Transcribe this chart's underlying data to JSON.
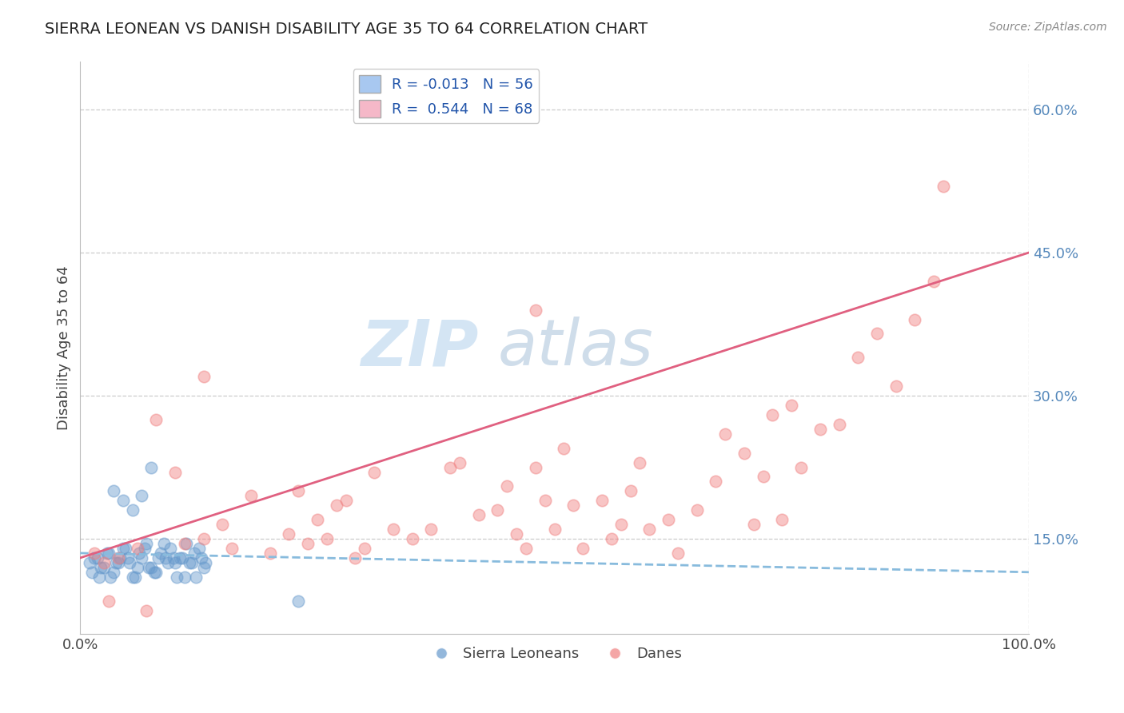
{
  "title": "SIERRA LEONEAN VS DANISH DISABILITY AGE 35 TO 64 CORRELATION CHART",
  "source": "Source: ZipAtlas.com",
  "ylabel": "Disability Age 35 to 64",
  "xlim": [
    0,
    100
  ],
  "ylim": [
    5,
    65
  ],
  "ytick_vals": [
    15,
    30,
    45,
    60
  ],
  "ytick_labels": [
    "15.0%",
    "30.0%",
    "45.0%",
    "60.0%"
  ],
  "xtick_vals": [
    0,
    100
  ],
  "xtick_labels": [
    "0.0%",
    "100.0%"
  ],
  "legend_r1": "R = -0.013   N = 56",
  "legend_r2": "R =  0.544   N = 68",
  "legend_r1_color": "#a8c8f0",
  "legend_r2_color": "#f5b8c8",
  "legend_bottom": [
    "Sierra Leoneans",
    "Danes"
  ],
  "sierra_color": "#6699cc",
  "dane_color": "#f08080",
  "trend_sierra_color": "#88bbdd",
  "trend_dane_color": "#e06080",
  "watermark_zip": "ZIP",
  "watermark_atlas": "atlas",
  "background_color": "#ffffff",
  "grid_color": "#cccccc",
  "sierra_x": [
    1.0,
    1.5,
    2.0,
    2.5,
    3.0,
    3.5,
    4.0,
    4.5,
    5.0,
    5.5,
    6.0,
    6.5,
    7.0,
    7.5,
    8.0,
    8.5,
    9.0,
    9.5,
    10.0,
    10.5,
    11.0,
    11.5,
    12.0,
    12.5,
    13.0,
    1.2,
    1.8,
    2.2,
    2.8,
    3.2,
    3.8,
    4.2,
    4.8,
    5.2,
    5.8,
    6.2,
    6.8,
    7.2,
    7.8,
    8.2,
    8.8,
    9.2,
    9.8,
    10.2,
    10.8,
    11.2,
    11.8,
    12.2,
    12.8,
    13.2,
    3.5,
    4.5,
    5.5,
    6.5,
    7.5,
    23.0
  ],
  "sierra_y": [
    12.5,
    13.0,
    11.0,
    12.0,
    13.5,
    11.5,
    12.5,
    14.0,
    13.0,
    11.0,
    12.0,
    13.0,
    14.5,
    12.0,
    11.5,
    13.5,
    13.0,
    14.0,
    12.5,
    13.0,
    11.0,
    12.5,
    13.5,
    14.0,
    12.0,
    11.5,
    13.0,
    12.0,
    13.5,
    11.0,
    12.5,
    13.0,
    14.0,
    12.5,
    11.0,
    13.5,
    14.0,
    12.0,
    11.5,
    13.0,
    14.5,
    12.5,
    13.0,
    11.0,
    13.0,
    14.5,
    12.5,
    11.0,
    13.0,
    12.5,
    20.0,
    19.0,
    18.0,
    19.5,
    22.5,
    8.5
  ],
  "dane_x": [
    1.5,
    2.5,
    4.0,
    6.0,
    8.0,
    10.0,
    11.0,
    13.0,
    15.0,
    16.0,
    18.0,
    20.0,
    22.0,
    23.0,
    24.0,
    25.0,
    26.0,
    27.0,
    28.0,
    29.0,
    30.0,
    31.0,
    33.0,
    35.0,
    37.0,
    39.0,
    40.0,
    42.0,
    44.0,
    45.0,
    46.0,
    47.0,
    48.0,
    49.0,
    50.0,
    51.0,
    52.0,
    53.0,
    55.0,
    56.0,
    57.0,
    58.0,
    59.0,
    60.0,
    62.0,
    63.0,
    65.0,
    67.0,
    68.0,
    70.0,
    71.0,
    72.0,
    73.0,
    74.0,
    75.0,
    76.0,
    78.0,
    80.0,
    82.0,
    84.0,
    86.0,
    88.0,
    90.0,
    91.0,
    48.0,
    13.0,
    3.0,
    7.0
  ],
  "dane_y": [
    13.5,
    12.5,
    13.0,
    14.0,
    27.5,
    22.0,
    14.5,
    15.0,
    16.5,
    14.0,
    19.5,
    13.5,
    15.5,
    20.0,
    14.5,
    17.0,
    15.0,
    18.5,
    19.0,
    13.0,
    14.0,
    22.0,
    16.0,
    15.0,
    16.0,
    22.5,
    23.0,
    17.5,
    18.0,
    20.5,
    15.5,
    14.0,
    22.5,
    19.0,
    16.0,
    24.5,
    18.5,
    14.0,
    19.0,
    15.0,
    16.5,
    20.0,
    23.0,
    16.0,
    17.0,
    13.5,
    18.0,
    21.0,
    26.0,
    24.0,
    16.5,
    21.5,
    28.0,
    17.0,
    29.0,
    22.5,
    26.5,
    27.0,
    34.0,
    36.5,
    31.0,
    38.0,
    42.0,
    52.0,
    39.0,
    32.0,
    8.5,
    7.5
  ],
  "sierra_trend_x0": 0,
  "sierra_trend_x1": 100,
  "sierra_trend_y0": 13.5,
  "sierra_trend_y1": 11.5,
  "dane_trend_x0": 0,
  "dane_trend_x1": 100,
  "dane_trend_y0": 13.0,
  "dane_trend_y1": 45.0
}
